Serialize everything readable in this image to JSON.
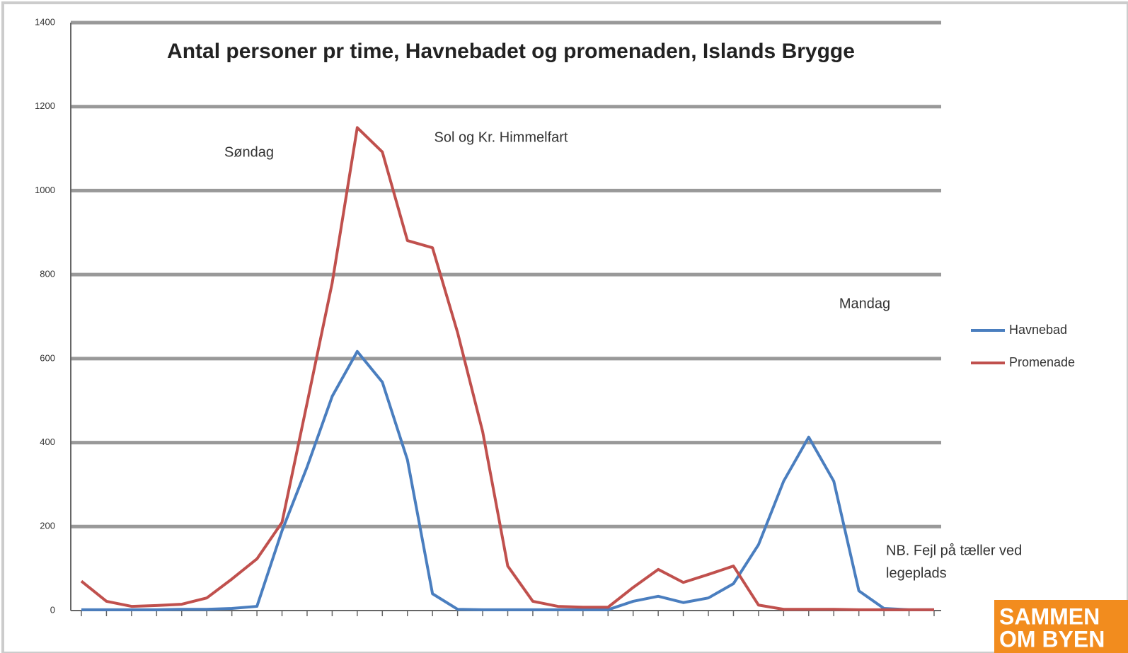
{
  "chart_data": {
    "type": "line",
    "title": "Antal personer pr time, Havnebadet og promenaden, Islands Brygge",
    "categories": [
      null,
      null,
      null,
      null,
      null,
      null,
      null,
      null,
      null,
      null,
      null,
      null,
      null,
      null,
      null,
      null,
      null,
      null,
      null,
      null,
      null,
      null,
      null,
      null,
      null,
      null,
      null,
      null,
      null,
      null,
      null,
      null,
      null,
      null,
      null
    ],
    "series": [
      {
        "name": "Havnebad",
        "color": "#4a7ebf",
        "values": [
          2,
          2,
          2,
          2,
          3,
          3,
          5,
          10,
          190,
          342,
          510,
          617,
          544,
          359,
          40,
          3,
          2,
          2,
          2,
          2,
          2,
          2,
          22,
          34,
          19,
          30,
          64,
          157,
          308,
          413,
          308,
          47,
          5,
          2,
          2
        ]
      },
      {
        "name": "Promenade",
        "color": "#c0504d",
        "values": [
          70,
          22,
          10,
          12,
          15,
          30,
          75,
          123,
          210,
          494,
          780,
          1150,
          1092,
          881,
          864,
          662,
          426,
          106,
          22,
          10,
          8,
          8,
          55,
          98,
          67,
          86,
          106,
          13,
          3,
          3,
          3,
          2,
          2,
          2,
          2
        ]
      }
    ],
    "ylim": [
      0,
      1400
    ],
    "yticks": [
      0,
      200,
      400,
      600,
      800,
      1000,
      1200,
      1400
    ],
    "grid": true,
    "legend": "right",
    "annotations": [
      "Søndag",
      "Sol og Kr. Himmelfart",
      "Mandag",
      "NB. Fejl på tæller ved",
      "legeplads"
    ],
    "logo": [
      "SAMMEN",
      "OM BYEN"
    ]
  }
}
